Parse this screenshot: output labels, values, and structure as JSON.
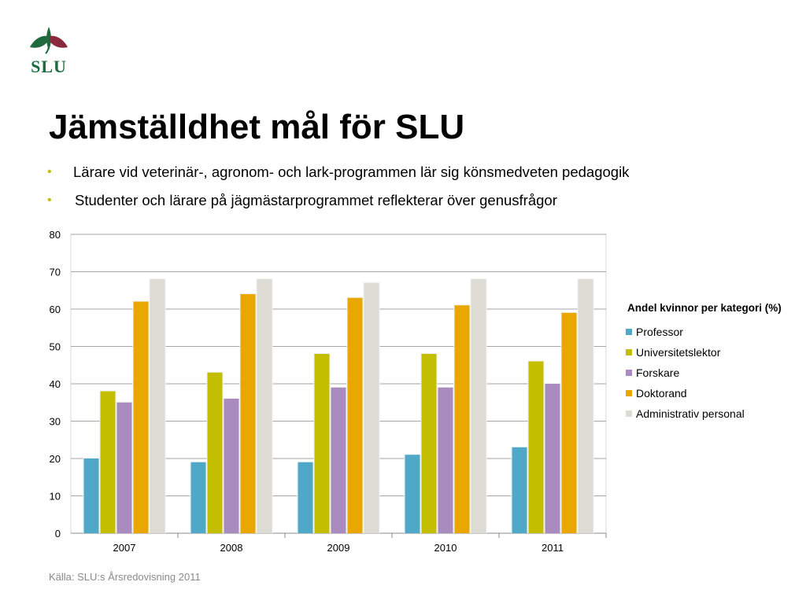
{
  "logo": {
    "text": "SLU"
  },
  "title": "Jämställdhet mål för SLU",
  "bullets": [
    "Lärare vid veterinär-, agronom- och lark-programmen lär sig könsmedveten pedagogik",
    "Studenter och lärare på jägmästarprogrammet reflekterar över genusfrågor"
  ],
  "colors": {
    "bullet": "#c8be00",
    "logo_green": "#1e6a3c",
    "logo_red": "#8b2a3f"
  },
  "chart_data": {
    "type": "bar",
    "categories": [
      "2007",
      "2008",
      "2009",
      "2010",
      "2011"
    ],
    "series": [
      {
        "name": "Professor",
        "color": "#4fa8c8",
        "values": [
          20,
          19,
          19,
          21,
          23
        ]
      },
      {
        "name": "Universitetslektor",
        "color": "#c4be00",
        "values": [
          38,
          43,
          48,
          48,
          46
        ]
      },
      {
        "name": "Forskare",
        "color": "#a98bc0",
        "values": [
          35,
          36,
          39,
          39,
          40
        ]
      },
      {
        "name": "Doktorand",
        "color": "#eaa700",
        "values": [
          62,
          64,
          63,
          61,
          59
        ]
      },
      {
        "name": "Administrativ personal",
        "color": "#dedbd4",
        "values": [
          68,
          68,
          67,
          68,
          68
        ]
      }
    ],
    "yticks": [
      "0",
      "10",
      "20",
      "30",
      "40",
      "50",
      "60",
      "70",
      "80"
    ],
    "ylim": [
      0,
      80
    ],
    "legend_title": "Andel kvinnor per kategori (%)",
    "legend_position": "right",
    "grid": true
  },
  "source": "Källa: SLU:s Årsredovisning 2011"
}
